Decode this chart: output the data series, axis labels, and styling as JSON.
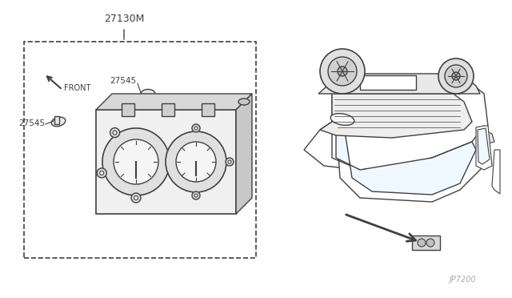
{
  "bg_color": "#ffffff",
  "line_color": "#404040",
  "light_line": "#888888",
  "title_text": "",
  "part_numbers": {
    "main": "27130M",
    "small1": "27545",
    "small2": "27545"
  },
  "front_label": "FRONT",
  "watermark": "JP7200",
  "figsize": [
    6.4,
    3.72
  ],
  "dpi": 100
}
